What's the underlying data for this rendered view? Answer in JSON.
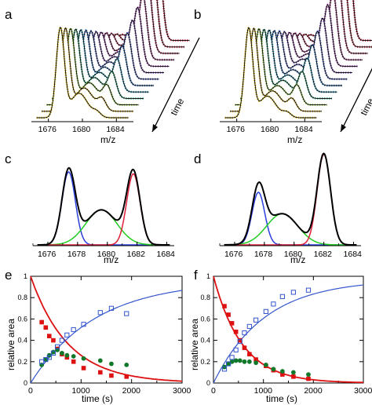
{
  "panels": {
    "a": {
      "label": "a",
      "xlabel": "m/z",
      "time_label": "time",
      "xticks": [
        "1676",
        "1680",
        "1684"
      ]
    },
    "b": {
      "label": "b",
      "xlabel": "m/z",
      "time_label": "time",
      "xticks": [
        "1676",
        "1680",
        "1684"
      ]
    },
    "c": {
      "label": "c",
      "xlabel": "m/z",
      "xticks": [
        "1676",
        "1678",
        "1680",
        "1682",
        "1684"
      ]
    },
    "d": {
      "label": "d",
      "xlabel": "m/z",
      "xticks": [
        "1676",
        "1678",
        "1680",
        "1682",
        "1684"
      ]
    },
    "e": {
      "label": "e",
      "xlabel": "time (s)",
      "ylabel": "relative area",
      "xticks": [
        "0",
        "1000",
        "2000",
        "3000"
      ],
      "yticks": [
        "0",
        "0.2",
        "0.4",
        "0.6",
        "0.8",
        "1"
      ]
    },
    "f": {
      "label": "f",
      "xlabel": "time (s)",
      "ylabel": "relative area",
      "xticks": [
        "0",
        "1000",
        "2000",
        "3000"
      ],
      "yticks": [
        "0",
        "0.2",
        "0.4",
        "0.6",
        "0.8",
        "1"
      ]
    }
  },
  "colors": {
    "total": "#000000",
    "peak1": "#2a3fe0",
    "peak2": "#22cc22",
    "peak3": "#e0203a",
    "red_marker": "#dd1111",
    "green_marker": "#11782a",
    "blue_marker": "#3355cc"
  },
  "chart_data": [
    {
      "id": "a",
      "type": "line",
      "description_axes": {
        "x": "m/z",
        "depth": "time"
      },
      "xlim": [
        1674,
        1686
      ],
      "traces": 13,
      "peaks_first": [
        {
          "center": 1677.4,
          "height": 0.9,
          "sigma": 0.48
        },
        {
          "center": 1679.6,
          "height": 0.25,
          "sigma": 1.0
        },
        {
          "center": 1681.7,
          "height": 0.05,
          "sigma": 0.48
        }
      ],
      "peaks_last": [
        {
          "center": 1677.4,
          "height": 0.05,
          "sigma": 0.48
        },
        {
          "center": 1679.6,
          "height": 0.1,
          "sigma": 1.0
        },
        {
          "center": 1681.7,
          "height": 0.85,
          "sigma": 0.48
        }
      ]
    },
    {
      "id": "b",
      "type": "line",
      "description_axes": {
        "x": "m/z",
        "depth": "time"
      },
      "xlim": [
        1674,
        1686
      ],
      "traces": 13,
      "peaks_first": [
        {
          "center": 1677.4,
          "height": 0.9,
          "sigma": 0.48
        },
        {
          "center": 1679.6,
          "height": 0.22,
          "sigma": 1.0
        },
        {
          "center": 1681.9,
          "height": 0.05,
          "sigma": 0.48
        }
      ],
      "peaks_last": [
        {
          "center": 1677.4,
          "height": 0.05,
          "sigma": 0.48
        },
        {
          "center": 1679.6,
          "height": 0.08,
          "sigma": 1.0
        },
        {
          "center": 1681.9,
          "height": 0.9,
          "sigma": 0.48
        }
      ]
    },
    {
      "id": "c",
      "type": "line",
      "xlim": [
        1675,
        1684.5
      ],
      "components": [
        {
          "color_key": "peak1",
          "center": 1677.4,
          "height": 0.75,
          "sigma": 0.45
        },
        {
          "color_key": "peak2",
          "center": 1679.6,
          "height": 0.36,
          "sigma": 1.05
        },
        {
          "color_key": "peak3",
          "center": 1681.75,
          "height": 0.73,
          "sigma": 0.45
        }
      ]
    },
    {
      "id": "d",
      "type": "line",
      "xlim": [
        1675,
        1684.5
      ],
      "components": [
        {
          "color_key": "peak1",
          "center": 1677.6,
          "height": 0.54,
          "sigma": 0.43
        },
        {
          "color_key": "peak2",
          "center": 1679.2,
          "height": 0.32,
          "sigma": 1.05
        },
        {
          "color_key": "peak3",
          "center": 1682.0,
          "height": 0.93,
          "sigma": 0.45
        }
      ]
    },
    {
      "id": "e",
      "type": "scatter",
      "xlim": [
        0,
        3000
      ],
      "ylim": [
        0,
        1
      ],
      "series": [
        {
          "color_key": "red_marker",
          "marker": "filled-square",
          "x": [
            220,
            300,
            370,
            450,
            530,
            620,
            720,
            850,
            1050,
            1380,
            1600,
            1900
          ],
          "y": [
            0.57,
            0.52,
            0.44,
            0.4,
            0.32,
            0.27,
            0.24,
            0.2,
            0.14,
            0.1,
            0.07,
            0.06
          ]
        },
        {
          "color_key": "green_marker",
          "marker": "filled-circle",
          "x": [
            220,
            300,
            370,
            450,
            530,
            620,
            720,
            850,
            1050,
            1380,
            1600,
            1900
          ],
          "y": [
            0.17,
            0.22,
            0.26,
            0.29,
            0.31,
            0.28,
            0.26,
            0.25,
            0.23,
            0.21,
            0.18,
            0.17
          ]
        },
        {
          "color_key": "blue_marker",
          "marker": "open-square",
          "x": [
            220,
            300,
            370,
            450,
            530,
            620,
            720,
            850,
            1050,
            1380,
            1600,
            1900
          ],
          "y": [
            0.2,
            0.22,
            0.24,
            0.28,
            0.34,
            0.4,
            0.45,
            0.5,
            0.55,
            0.66,
            0.7,
            0.65
          ]
        }
      ],
      "fits": [
        {
          "color_key": "red_marker",
          "kind": "decay",
          "rate": 0.00135
        },
        {
          "color_key": "blue_marker",
          "kind": "rise",
          "rate": 0.00078,
          "amplitude": 0.96
        }
      ]
    },
    {
      "id": "f",
      "type": "scatter",
      "xlim": [
        0,
        3000
      ],
      "ylim": [
        0,
        1
      ],
      "series": [
        {
          "color_key": "red_marker",
          "marker": "filled-square",
          "x": [
            220,
            300,
            370,
            450,
            530,
            620,
            720,
            850,
            1050,
            1200,
            1380,
            1600,
            1900
          ],
          "y": [
            0.72,
            0.64,
            0.56,
            0.48,
            0.4,
            0.33,
            0.27,
            0.22,
            0.16,
            0.12,
            0.08,
            0.06,
            0.04
          ]
        },
        {
          "color_key": "green_marker",
          "marker": "filled-circle",
          "x": [
            220,
            300,
            370,
            450,
            530,
            620,
            720,
            850,
            1050,
            1200,
            1380,
            1600,
            1900
          ],
          "y": [
            0.15,
            0.18,
            0.2,
            0.21,
            0.21,
            0.2,
            0.2,
            0.19,
            0.17,
            0.13,
            0.11,
            0.1,
            0.08
          ]
        },
        {
          "color_key": "blue_marker",
          "marker": "open-square",
          "x": [
            220,
            300,
            370,
            450,
            530,
            620,
            720,
            850,
            1050,
            1200,
            1380,
            1600,
            1900
          ],
          "y": [
            0.13,
            0.18,
            0.24,
            0.31,
            0.39,
            0.47,
            0.53,
            0.59,
            0.67,
            0.74,
            0.81,
            0.85,
            0.87
          ]
        }
      ],
      "fits": [
        {
          "color_key": "red_marker",
          "kind": "decay",
          "rate": 0.00175
        },
        {
          "color_key": "blue_marker",
          "kind": "rise",
          "rate": 0.00098,
          "amplitude": 0.97
        }
      ]
    }
  ]
}
